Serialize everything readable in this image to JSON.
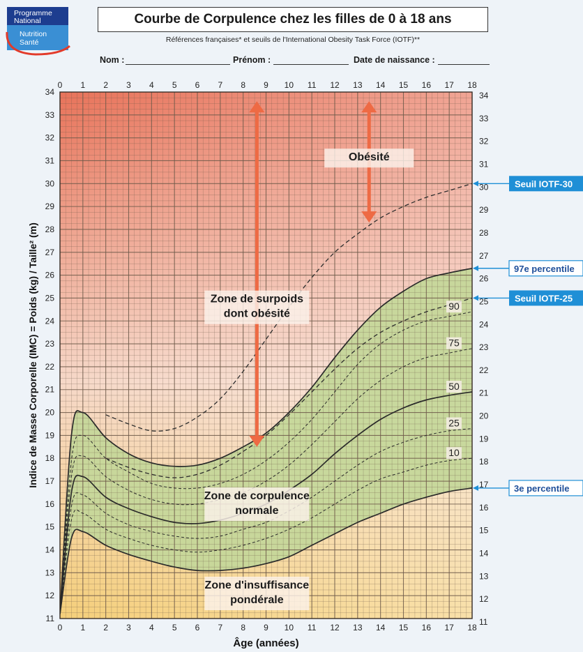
{
  "header": {
    "title": "Courbe de Corpulence chez les filles de 0 à 18 ans",
    "subtitle": "Références françaises* et seuils de l'International Obesity Task Force (IOTF)**",
    "logo_line1": "Programme",
    "logo_line2": "National",
    "logo_line3": "Nutrition",
    "logo_line4": "Santé",
    "nom_label": "Nom :",
    "prenom_label": "Prénom :",
    "naissance_label": "Date de naissance :"
  },
  "chart_data": {
    "type": "line",
    "xlabel": "Âge (années)",
    "ylabel": "Indice de Masse Corporelle (IMC) = Poids (kg) / Taille² (m)",
    "xlim": [
      0,
      18
    ],
    "ylim": [
      11,
      34
    ],
    "x_ticks": [
      0,
      1,
      2,
      3,
      4,
      5,
      6,
      7,
      8,
      9,
      10,
      11,
      12,
      13,
      14,
      15,
      16,
      17,
      18
    ],
    "y_ticks": [
      11,
      12,
      13,
      14,
      15,
      16,
      17,
      18,
      19,
      20,
      21,
      22,
      23,
      24,
      25,
      26,
      27,
      28,
      29,
      30,
      31,
      32,
      33,
      34
    ],
    "grid": true,
    "zones": [
      {
        "label_line1": "Obésité",
        "label_line2": ""
      },
      {
        "label_line1": "Zone de surpoids",
        "label_line2": "dont obésité"
      },
      {
        "label_line1": "Zone de corpulence",
        "label_line2": "normale"
      },
      {
        "label_line1": "Zone d'insuffisance",
        "label_line2": "pondérale"
      }
    ],
    "series": [
      {
        "name": "97e percentile",
        "style": "solid",
        "points": [
          [
            0,
            11.2
          ],
          [
            0.5,
            19.0
          ],
          [
            1,
            20.0
          ],
          [
            2,
            18.9
          ],
          [
            3,
            18.2
          ],
          [
            4,
            17.8
          ],
          [
            5,
            17.65
          ],
          [
            6,
            17.7
          ],
          [
            7,
            18.0
          ],
          [
            8,
            18.5
          ],
          [
            9,
            19.1
          ],
          [
            10,
            20.0
          ],
          [
            11,
            21.1
          ],
          [
            12,
            22.4
          ],
          [
            13,
            23.6
          ],
          [
            14,
            24.6
          ],
          [
            15,
            25.3
          ],
          [
            16,
            25.85
          ],
          [
            17,
            26.1
          ],
          [
            18,
            26.3
          ]
        ]
      },
      {
        "name": "90",
        "style": "dashed",
        "points": [
          [
            0,
            11.2
          ],
          [
            0.5,
            17.9
          ],
          [
            1,
            19.0
          ],
          [
            2,
            18.0
          ],
          [
            3,
            17.4
          ],
          [
            4,
            16.9
          ],
          [
            5,
            16.7
          ],
          [
            6,
            16.7
          ],
          [
            7,
            16.9
          ],
          [
            8,
            17.3
          ],
          [
            9,
            17.9
          ],
          [
            10,
            18.7
          ],
          [
            11,
            19.7
          ],
          [
            12,
            20.9
          ],
          [
            13,
            22.1
          ],
          [
            14,
            23.0
          ],
          [
            15,
            23.6
          ],
          [
            16,
            24.0
          ],
          [
            17,
            24.2
          ],
          [
            18,
            24.4
          ]
        ]
      },
      {
        "name": "75",
        "style": "dashed",
        "points": [
          [
            0,
            11.2
          ],
          [
            0.5,
            17.2
          ],
          [
            1,
            18.1
          ],
          [
            2,
            17.2
          ],
          [
            3,
            16.6
          ],
          [
            4,
            16.2
          ],
          [
            5,
            16.0
          ],
          [
            6,
            16.0
          ],
          [
            7,
            16.2
          ],
          [
            8,
            16.5
          ],
          [
            9,
            17.0
          ],
          [
            10,
            17.7
          ],
          [
            11,
            18.6
          ],
          [
            12,
            19.6
          ],
          [
            13,
            20.6
          ],
          [
            14,
            21.4
          ],
          [
            15,
            22.0
          ],
          [
            16,
            22.4
          ],
          [
            17,
            22.6
          ],
          [
            18,
            22.8
          ]
        ]
      },
      {
        "name": "50",
        "style": "solid",
        "points": [
          [
            0,
            11.2
          ],
          [
            0.5,
            16.5
          ],
          [
            1,
            17.2
          ],
          [
            2,
            16.3
          ],
          [
            3,
            15.8
          ],
          [
            4,
            15.45
          ],
          [
            5,
            15.2
          ],
          [
            6,
            15.15
          ],
          [
            7,
            15.3
          ],
          [
            8,
            15.6
          ],
          [
            9,
            16.0
          ],
          [
            10,
            16.6
          ],
          [
            11,
            17.3
          ],
          [
            12,
            18.2
          ],
          [
            13,
            19.0
          ],
          [
            14,
            19.7
          ],
          [
            15,
            20.2
          ],
          [
            16,
            20.55
          ],
          [
            17,
            20.75
          ],
          [
            18,
            20.9
          ]
        ]
      },
      {
        "name": "25",
        "style": "dashed",
        "points": [
          [
            0,
            11.2
          ],
          [
            0.5,
            15.9
          ],
          [
            1,
            16.4
          ],
          [
            2,
            15.6
          ],
          [
            3,
            15.1
          ],
          [
            4,
            14.8
          ],
          [
            5,
            14.6
          ],
          [
            6,
            14.5
          ],
          [
            7,
            14.6
          ],
          [
            8,
            14.9
          ],
          [
            9,
            15.2
          ],
          [
            10,
            15.7
          ],
          [
            11,
            16.3
          ],
          [
            12,
            17.0
          ],
          [
            13,
            17.7
          ],
          [
            14,
            18.3
          ],
          [
            15,
            18.7
          ],
          [
            16,
            19.0
          ],
          [
            17,
            19.2
          ],
          [
            18,
            19.3
          ]
        ]
      },
      {
        "name": "10",
        "style": "dashed",
        "points": [
          [
            0,
            11.2
          ],
          [
            0.5,
            15.3
          ],
          [
            1,
            15.6
          ],
          [
            2,
            14.9
          ],
          [
            3,
            14.5
          ],
          [
            4,
            14.2
          ],
          [
            5,
            14.0
          ],
          [
            6,
            13.9
          ],
          [
            7,
            14.0
          ],
          [
            8,
            14.2
          ],
          [
            9,
            14.5
          ],
          [
            10,
            14.9
          ],
          [
            11,
            15.4
          ],
          [
            12,
            16.0
          ],
          [
            13,
            16.6
          ],
          [
            14,
            17.1
          ],
          [
            15,
            17.4
          ],
          [
            16,
            17.7
          ],
          [
            17,
            17.9
          ],
          [
            18,
            18.0
          ]
        ]
      },
      {
        "name": "3e percentile",
        "style": "solid",
        "points": [
          [
            0,
            11.2
          ],
          [
            0.5,
            14.5
          ],
          [
            1,
            14.8
          ],
          [
            2,
            14.2
          ],
          [
            3,
            13.8
          ],
          [
            4,
            13.5
          ],
          [
            5,
            13.25
          ],
          [
            6,
            13.1
          ],
          [
            7,
            13.1
          ],
          [
            8,
            13.2
          ],
          [
            9,
            13.4
          ],
          [
            10,
            13.7
          ],
          [
            11,
            14.2
          ],
          [
            12,
            14.7
          ],
          [
            13,
            15.2
          ],
          [
            14,
            15.6
          ],
          [
            15,
            16.0
          ],
          [
            16,
            16.3
          ],
          [
            17,
            16.55
          ],
          [
            18,
            16.7
          ]
        ]
      },
      {
        "name": "Seuil IOTF-30",
        "style": "dashed",
        "points": [
          [
            2,
            19.9
          ],
          [
            3,
            19.5
          ],
          [
            4,
            19.2
          ],
          [
            5,
            19.3
          ],
          [
            6,
            19.8
          ],
          [
            7,
            20.6
          ],
          [
            8,
            21.8
          ],
          [
            9,
            23.2
          ],
          [
            10,
            24.6
          ],
          [
            11,
            25.9
          ],
          [
            12,
            27.0
          ],
          [
            13,
            27.8
          ],
          [
            14,
            28.5
          ],
          [
            15,
            29.0
          ],
          [
            16,
            29.4
          ],
          [
            17,
            29.7
          ],
          [
            18,
            30.0
          ]
        ]
      },
      {
        "name": "Seuil IOTF-25",
        "style": "dashed",
        "points": [
          [
            2,
            18.0
          ],
          [
            3,
            17.6
          ],
          [
            4,
            17.3
          ],
          [
            5,
            17.15
          ],
          [
            6,
            17.3
          ],
          [
            7,
            17.7
          ],
          [
            8,
            18.3
          ],
          [
            9,
            19.0
          ],
          [
            10,
            19.9
          ],
          [
            11,
            20.9
          ],
          [
            12,
            21.9
          ],
          [
            13,
            22.8
          ],
          [
            14,
            23.5
          ],
          [
            15,
            24.0
          ],
          [
            16,
            24.4
          ],
          [
            17,
            24.7
          ],
          [
            18,
            25.0
          ]
        ]
      }
    ],
    "right_labels": [
      {
        "text": "Seuil IOTF-30",
        "y": 30.0,
        "boxed": true
      },
      {
        "text": "97e percentile",
        "y": 26.3,
        "boxed": false
      },
      {
        "text": "Seuil IOTF-25",
        "y": 25.0,
        "boxed": true
      },
      {
        "text": "3e percentile",
        "y": 16.7,
        "boxed": false
      }
    ],
    "colors": {
      "top": "#e8735a",
      "middle": "#f6d8c8",
      "bottom": "#f5cf7a",
      "normal_band": "#c5d79a",
      "grid": "#6e5a4a",
      "arrow": "#ee6a44",
      "label_box": "#1f8fd6"
    }
  }
}
